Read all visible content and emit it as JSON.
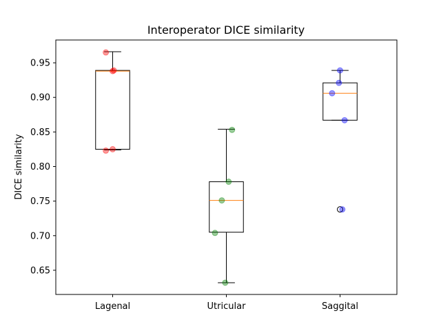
{
  "chart_data": {
    "type": "box",
    "title": "Interoperator DICE similarity",
    "xlabel": "",
    "ylabel": "DICE similarity",
    "ylim": [
      0.615,
      0.983
    ],
    "yticks": [
      0.65,
      0.7,
      0.75,
      0.8,
      0.85,
      0.9,
      0.95
    ],
    "ytick_labels": [
      "0.65",
      "0.70",
      "0.75",
      "0.80",
      "0.85",
      "0.90",
      "0.95"
    ],
    "grid": false,
    "categories": [
      "Lagenal",
      "Utricular",
      "Saggital"
    ],
    "boxes": [
      {
        "name": "Lagenal",
        "color": "#ff0000",
        "whisker_low": 0.824,
        "q1": 0.825,
        "median": 0.938,
        "q3": 0.939,
        "whisker_high": 0.966,
        "outliers": [],
        "points": [
          {
            "x_offset": -0.06,
            "y": 0.823
          },
          {
            "x_offset": 0.0,
            "y": 0.825
          },
          {
            "x_offset": -0.06,
            "y": 0.965
          },
          {
            "x_offset": 0.0,
            "y": 0.938
          },
          {
            "x_offset": 0.01,
            "y": 0.939
          }
        ]
      },
      {
        "name": "Utricular",
        "color": "#008000",
        "whisker_low": 0.632,
        "q1": 0.705,
        "median": 0.751,
        "q3": 0.778,
        "whisker_high": 0.854,
        "outliers": [],
        "points": [
          {
            "x_offset": 0.05,
            "y": 0.853
          },
          {
            "x_offset": 0.02,
            "y": 0.778
          },
          {
            "x_offset": -0.04,
            "y": 0.751
          },
          {
            "x_offset": -0.1,
            "y": 0.704
          },
          {
            "x_offset": -0.01,
            "y": 0.632
          }
        ]
      },
      {
        "name": "Saggital",
        "color": "#0000ff",
        "whisker_low": 0.867,
        "q1": 0.867,
        "median": 0.906,
        "q3": 0.921,
        "whisker_high": 0.939,
        "outliers": [
          0.738
        ],
        "points": [
          {
            "x_offset": 0.0,
            "y": 0.939
          },
          {
            "x_offset": -0.01,
            "y": 0.921
          },
          {
            "x_offset": -0.07,
            "y": 0.906
          },
          {
            "x_offset": 0.04,
            "y": 0.867
          },
          {
            "x_offset": 0.02,
            "y": 0.738
          }
        ]
      }
    ]
  }
}
